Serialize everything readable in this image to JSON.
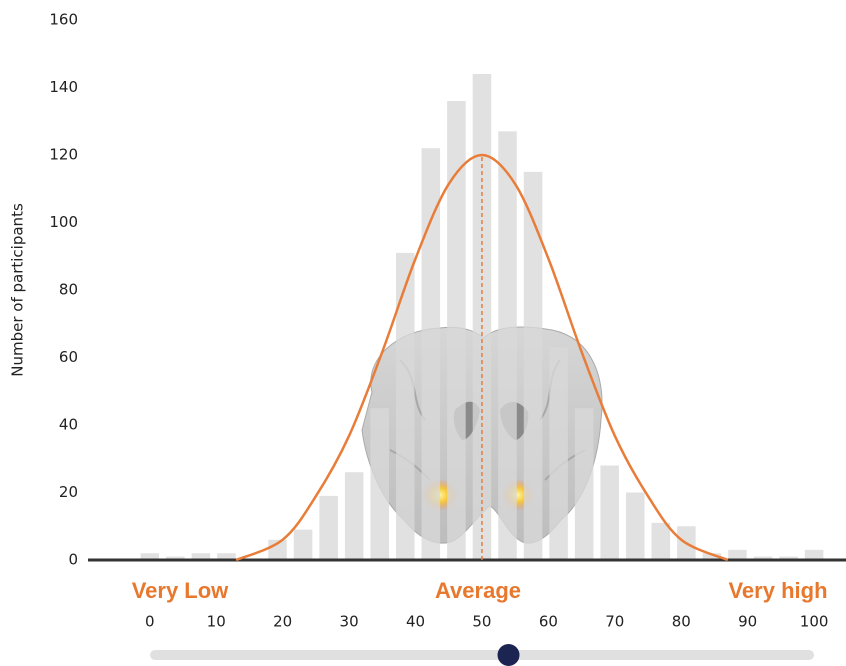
{
  "chart_data": {
    "type": "histogram",
    "y_label": "Number of participants",
    "bins": [
      -1.92,
      1.92,
      5.77,
      9.62,
      13.46,
      17.31,
      21.15,
      25.0,
      28.85,
      32.69,
      36.54,
      40.38,
      44.23,
      48.08,
      51.92,
      55.77,
      59.62,
      63.46,
      67.31,
      71.15,
      75.0,
      78.85,
      82.69,
      86.54,
      90.38,
      94.23,
      98.08,
      101.92
    ],
    "values": [
      2,
      1,
      2,
      2,
      0,
      6,
      9,
      19,
      26,
      45,
      91,
      122,
      136,
      144,
      127,
      115,
      63,
      45,
      28,
      20,
      11,
      10,
      2,
      3,
      1,
      1,
      3
    ],
    "color": "#d9d9d9",
    "xlim": [
      -9.3,
      104.8
    ],
    "xticks": [
      0,
      10,
      20,
      30,
      40,
      50,
      60,
      70,
      80,
      90,
      100
    ],
    "ylim": [
      0,
      160
    ],
    "yticks": [
      0,
      20,
      40,
      60,
      80,
      100,
      120,
      140,
      160
    ],
    "curve": {
      "x": [
        13,
        20,
        25,
        30,
        35,
        40,
        45,
        50,
        55,
        60,
        65,
        70,
        75,
        80,
        87
      ],
      "values": [
        0,
        6,
        18.9,
        36.8,
        61.7,
        89.3,
        111.4,
        120,
        111.4,
        89.3,
        61.7,
        36.8,
        18.9,
        6,
        0
      ],
      "color": "#e87d3a"
    },
    "mean_line": {
      "x": 50,
      "y": 120
    },
    "annotations": [
      "Very Low",
      "Average",
      "Very high"
    ],
    "slider": {
      "value": 54,
      "color": "#1c2452"
    }
  }
}
